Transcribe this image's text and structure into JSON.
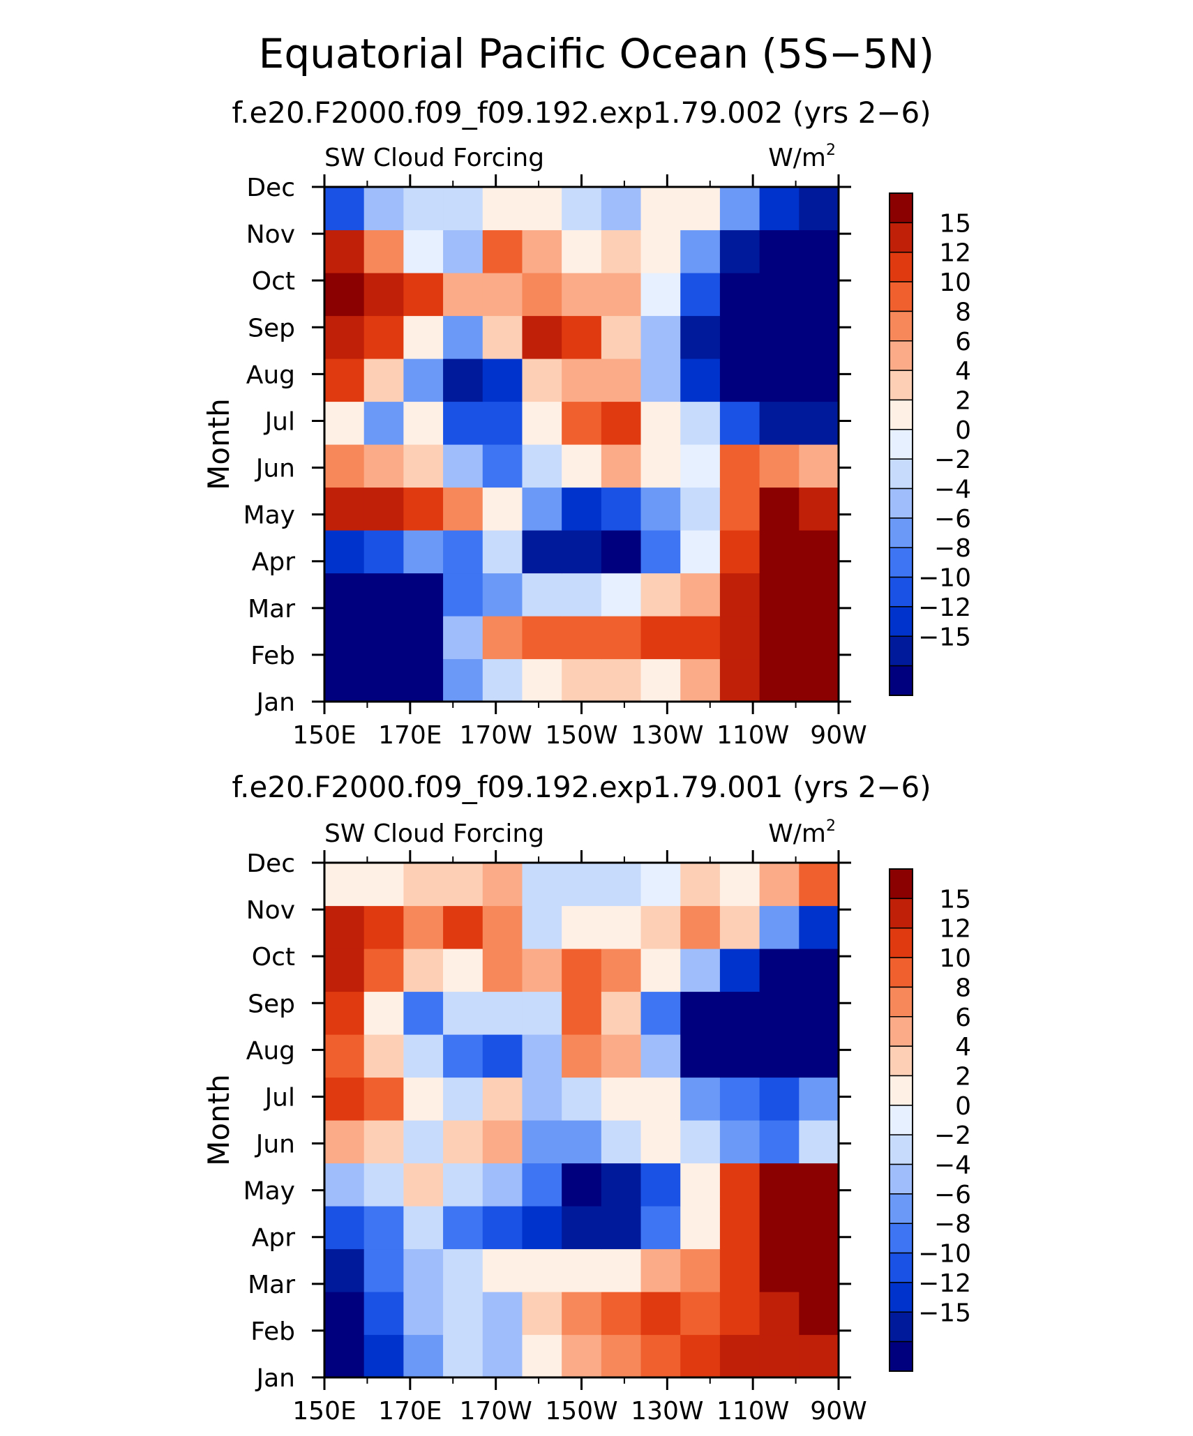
{
  "title": "Equatorial Pacific Ocean (5S−5N)",
  "colors": {
    "frame": "#000000",
    "levels": [
      "#00007f",
      "#001a9c",
      "#0033cc",
      "#1a52e6",
      "#3d75f2",
      "#6b99f7",
      "#9ebdfa",
      "#c7dbfc",
      "#e6f0fe",
      "#fff0e6",
      "#fdd0b6",
      "#fbab87",
      "#f7885a",
      "#f0602e",
      "#e03a10",
      "#c01f08",
      "#8b0000"
    ]
  },
  "chart_data": [
    {
      "type": "heatmap",
      "panel": "top",
      "title": "f.e20.F2000.f09_f09.192.exp1.79.002 (yrs 2−6)",
      "left_label": "SW Cloud Forcing",
      "right_label": "W/m",
      "right_label_sup": "2",
      "ylabel": "Month",
      "x_ticks": [
        "150E",
        "170E",
        "170W",
        "150W",
        "130W",
        "110W",
        "90W"
      ],
      "y_ticks": [
        "Jan",
        "Feb",
        "Mar",
        "Apr",
        "May",
        "Jun",
        "Jul",
        "Aug",
        "Sep",
        "Oct",
        "Nov",
        "Dec"
      ],
      "colorbar_labels": [
        "15",
        "12",
        "10",
        "8",
        "6",
        "4",
        "2",
        "0",
        "−2",
        "−4",
        "−6",
        "−8",
        "−10",
        "−12",
        "−15"
      ],
      "x_lon": [
        150,
        160,
        170,
        180,
        190,
        200,
        210,
        220,
        230,
        240,
        250,
        260,
        270
      ],
      "grid": [
        [
          -20,
          -20,
          -20,
          -6,
          -2,
          2,
          4,
          4,
          2,
          6,
          15,
          20,
          20
        ],
        [
          -20,
          -20,
          -20,
          -4,
          8,
          10,
          10,
          10,
          12,
          12,
          15,
          20,
          20
        ],
        [
          -20,
          -20,
          -16,
          -8,
          -6,
          -2,
          -2,
          0,
          4,
          6,
          15,
          20,
          20
        ],
        [
          -12,
          -10,
          -6,
          -8,
          -2,
          -15,
          -15,
          -16,
          -8,
          0,
          12,
          20,
          20
        ],
        [
          16,
          18,
          14,
          8,
          2,
          -6,
          -12,
          -10,
          -6,
          -2,
          10,
          20,
          18
        ],
        [
          8,
          6,
          4,
          -4,
          -8,
          -2,
          2,
          6,
          2,
          0,
          10,
          8,
          6
        ],
        [
          2,
          -6,
          2,
          -10,
          -10,
          2,
          10,
          12,
          2,
          -2,
          -10,
          -14,
          -15
        ],
        [
          12,
          4,
          -6,
          -15,
          -12,
          4,
          6,
          6,
          -4,
          -12,
          -20,
          -20,
          -20
        ],
        [
          16,
          12,
          2,
          -6,
          4,
          15,
          14,
          4,
          -4,
          -15,
          -20,
          -20,
          -20
        ],
        [
          20,
          18,
          14,
          6,
          6,
          8,
          6,
          6,
          0,
          -10,
          -20,
          -20,
          -20
        ],
        [
          16,
          8,
          0,
          -4,
          10,
          6,
          2,
          4,
          2,
          -6,
          -15,
          -18,
          -20
        ],
        [
          -10,
          -4,
          -2,
          -2,
          2,
          2,
          -2,
          -4,
          2,
          2,
          -6,
          -12,
          -14
        ]
      ]
    },
    {
      "type": "heatmap",
      "panel": "bottom",
      "title": "f.e20.F2000.f09_f09.192.exp1.79.001 (yrs 2−6)",
      "left_label": "SW Cloud Forcing",
      "right_label": "W/m",
      "right_label_sup": "2",
      "ylabel": "Month",
      "x_ticks": [
        "150E",
        "170E",
        "170W",
        "150W",
        "130W",
        "110W",
        "90W"
      ],
      "y_ticks": [
        "Jan",
        "Feb",
        "Mar",
        "Apr",
        "May",
        "Jun",
        "Jul",
        "Aug",
        "Sep",
        "Oct",
        "Nov",
        "Dec"
      ],
      "colorbar_labels": [
        "15",
        "12",
        "10",
        "8",
        "6",
        "4",
        "2",
        "0",
        "−2",
        "−4",
        "−6",
        "−8",
        "−10",
        "−12",
        "−15"
      ],
      "x_lon": [
        150,
        160,
        170,
        180,
        190,
        200,
        210,
        220,
        230,
        240,
        250,
        260,
        270
      ],
      "grid": [
        [
          -18,
          -12,
          -6,
          -2,
          -4,
          2,
          6,
          8,
          10,
          12,
          15,
          18,
          16
        ],
        [
          -16,
          -10,
          -4,
          -2,
          -4,
          4,
          8,
          10,
          14,
          10,
          14,
          18,
          20
        ],
        [
          -14,
          -8,
          -4,
          -2,
          2,
          2,
          2,
          2,
          6,
          8,
          12,
          20,
          20
        ],
        [
          -10,
          -8,
          -2,
          -8,
          -10,
          -12,
          -15,
          -14,
          -8,
          2,
          14,
          20,
          20
        ],
        [
          -4,
          -2,
          4,
          -2,
          -4,
          -8,
          -16,
          -14,
          -10,
          2,
          12,
          20,
          20
        ],
        [
          6,
          4,
          -2,
          4,
          6,
          -6,
          -6,
          -2,
          2,
          -2,
          -6,
          -8,
          -2
        ],
        [
          12,
          10,
          2,
          -2,
          4,
          -4,
          -2,
          2,
          2,
          -6,
          -8,
          -10,
          -6
        ],
        [
          10,
          4,
          -2,
          -8,
          -10,
          -4,
          8,
          6,
          -4,
          -16,
          -20,
          -20,
          -20
        ],
        [
          12,
          2,
          -8,
          -2,
          -2,
          -2,
          10,
          4,
          -8,
          -18,
          -20,
          -20,
          -20
        ],
        [
          16,
          10,
          4,
          2,
          8,
          6,
          10,
          8,
          2,
          -4,
          -12,
          -16,
          -20
        ],
        [
          18,
          12,
          8,
          14,
          8,
          -2,
          2,
          2,
          4,
          8,
          4,
          -6,
          -12
        ],
        [
          2,
          2,
          4,
          4,
          6,
          -2,
          -2,
          -2,
          0,
          4,
          2,
          6,
          10
        ]
      ]
    }
  ]
}
